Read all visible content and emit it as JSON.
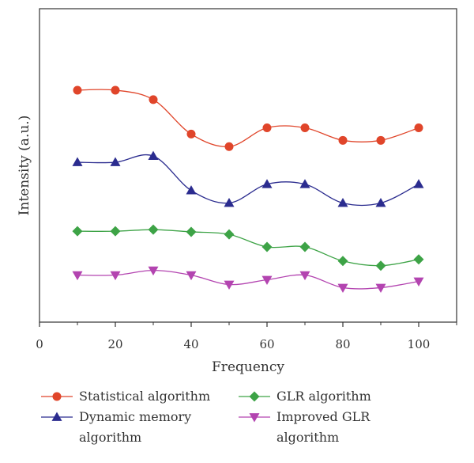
{
  "chart_data": {
    "type": "line",
    "title": "",
    "xlabel": "Frequency",
    "ylabel": "Intensity (a.u.)",
    "xlim": [
      0,
      110
    ],
    "ylim": [
      0,
      100
    ],
    "xticks": [
      "0",
      "20",
      "40",
      "60",
      "80",
      "100"
    ],
    "x": [
      10,
      20,
      30,
      40,
      50,
      60,
      70,
      80,
      90,
      100
    ],
    "legend_position": "bottom",
    "series": [
      {
        "name": "Statistical algorithm",
        "color": "#e0452a",
        "marker": "circle",
        "values": [
          74,
          74,
          71,
          60,
          56,
          62,
          62,
          58,
          58,
          62
        ]
      },
      {
        "name": "Dynamic memory algorithm",
        "color": "#2b2c8f",
        "marker": "triangle-up",
        "values": [
          51,
          51,
          53,
          42,
          38,
          44,
          44,
          38,
          38,
          44
        ]
      },
      {
        "name": "GLR algorithm",
        "color": "#3da346",
        "marker": "diamond",
        "values": [
          29,
          29,
          29.5,
          28.8,
          28,
          24,
          24,
          19.5,
          18,
          20
        ]
      },
      {
        "name": "Improved GLR algorithm",
        "color": "#b344b0",
        "marker": "triangle-down",
        "values": [
          15,
          15,
          16.5,
          15,
          12,
          13.5,
          15,
          11,
          11,
          13
        ]
      }
    ]
  }
}
